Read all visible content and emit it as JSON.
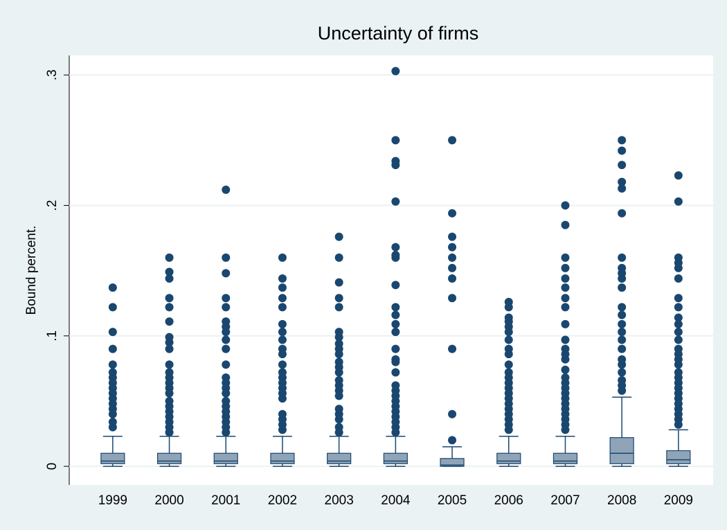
{
  "chart_data": {
    "type": "box",
    "title": "Uncertainty of firms",
    "y_label": "Bound percent.",
    "categories": [
      "1999",
      "2000",
      "2001",
      "2002",
      "2003",
      "2004",
      "2005",
      "2006",
      "2007",
      "2008",
      "2009"
    ],
    "whisker_low": [
      0,
      0,
      0,
      0,
      0,
      0,
      0,
      0,
      0,
      0,
      0
    ],
    "q1": [
      0.002,
      0.002,
      0.002,
      0.002,
      0.002,
      0.002,
      0,
      0.002,
      0.002,
      0.002,
      0.002
    ],
    "median": [
      0.004,
      0.004,
      0.004,
      0.004,
      0.004,
      0.004,
      0.001,
      0.004,
      0.004,
      0.01,
      0.005
    ],
    "q3": [
      0.01,
      0.01,
      0.01,
      0.01,
      0.01,
      0.01,
      0.006,
      0.01,
      0.01,
      0.022,
      0.012
    ],
    "whisker_high": [
      0.023,
      0.023,
      0.023,
      0.023,
      0.023,
      0.023,
      0.015,
      0.023,
      0.023,
      0.053,
      0.028
    ],
    "outliers": [
      [
        0.137,
        0.122,
        0.103,
        0.09,
        0.078,
        0.072,
        0.068,
        0.064,
        0.06,
        0.056,
        0.052,
        0.048,
        0.044,
        0.04,
        0.034,
        0.03
      ],
      [
        0.16,
        0.149,
        0.144,
        0.129,
        0.122,
        0.111,
        0.099,
        0.095,
        0.09,
        0.078,
        0.072,
        0.068,
        0.064,
        0.06,
        0.056,
        0.05,
        0.046,
        0.042,
        0.038,
        0.034,
        0.03,
        0.026
      ],
      [
        0.212,
        0.16,
        0.148,
        0.129,
        0.122,
        0.111,
        0.107,
        0.103,
        0.097,
        0.09,
        0.078,
        0.068,
        0.064,
        0.06,
        0.056,
        0.05,
        0.046,
        0.042,
        0.038,
        0.034,
        0.03,
        0.026
      ],
      [
        0.16,
        0.144,
        0.137,
        0.129,
        0.122,
        0.109,
        0.103,
        0.097,
        0.09,
        0.086,
        0.078,
        0.072,
        0.068,
        0.064,
        0.06,
        0.056,
        0.052,
        0.04,
        0.036,
        0.032,
        0.028
      ],
      [
        0.176,
        0.16,
        0.141,
        0.129,
        0.122,
        0.103,
        0.099,
        0.094,
        0.09,
        0.086,
        0.08,
        0.076,
        0.072,
        0.066,
        0.062,
        0.058,
        0.054,
        0.044,
        0.04,
        0.036,
        0.03,
        0.026
      ],
      [
        0.303,
        0.25,
        0.234,
        0.231,
        0.203,
        0.168,
        0.162,
        0.16,
        0.139,
        0.122,
        0.116,
        0.109,
        0.103,
        0.09,
        0.082,
        0.08,
        0.072,
        0.062,
        0.058,
        0.054,
        0.05,
        0.046,
        0.042,
        0.038,
        0.034,
        0.03,
        0.026
      ],
      [
        0.25,
        0.194,
        0.176,
        0.168,
        0.16,
        0.152,
        0.144,
        0.129,
        0.09,
        0.04,
        0.02
      ],
      [
        0.126,
        0.122,
        0.114,
        0.111,
        0.107,
        0.103,
        0.097,
        0.09,
        0.086,
        0.078,
        0.072,
        0.068,
        0.064,
        0.06,
        0.056,
        0.052,
        0.048,
        0.044,
        0.04,
        0.036,
        0.032,
        0.028
      ],
      [
        0.2,
        0.185,
        0.16,
        0.152,
        0.144,
        0.137,
        0.129,
        0.122,
        0.109,
        0.097,
        0.09,
        0.086,
        0.082,
        0.074,
        0.068,
        0.064,
        0.06,
        0.056,
        0.052,
        0.048,
        0.044,
        0.04,
        0.036,
        0.032,
        0.028
      ],
      [
        0.25,
        0.242,
        0.231,
        0.218,
        0.213,
        0.194,
        0.16,
        0.152,
        0.148,
        0.144,
        0.137,
        0.122,
        0.116,
        0.109,
        0.103,
        0.097,
        0.09,
        0.082,
        0.078,
        0.072,
        0.066,
        0.062,
        0.058
      ],
      [
        0.223,
        0.203,
        0.16,
        0.156,
        0.152,
        0.144,
        0.129,
        0.122,
        0.114,
        0.109,
        0.103,
        0.097,
        0.09,
        0.086,
        0.082,
        0.078,
        0.072,
        0.068,
        0.064,
        0.06,
        0.056,
        0.052,
        0.048,
        0.044,
        0.04,
        0.036,
        0.032
      ]
    ],
    "box_color": "#90a4b8",
    "line_color": "#1a476f",
    "marker_color": "#1a476f",
    "ylim": [
      -0.0143,
      0.315
    ],
    "yticks": [
      0,
      {
        "value": 0.1,
        "label": ".1"
      },
      {
        "value": 0.2,
        "label": ".2"
      },
      {
        "value": 0.3,
        "label": ".3"
      }
    ],
    "grid": true
  }
}
